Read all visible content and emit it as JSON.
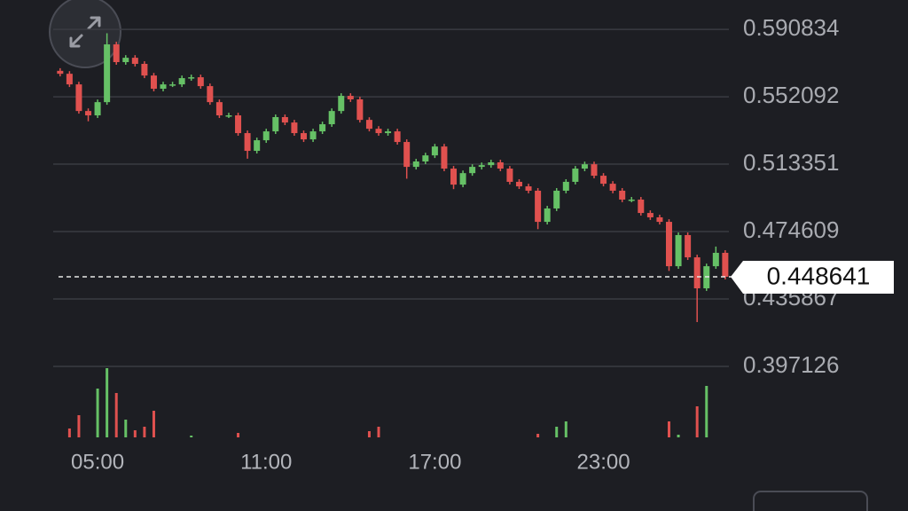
{
  "chart_data": {
    "type": "candlestick",
    "x": [
      3.667,
      4,
      4.333,
      4.667,
      5,
      5.333,
      5.667,
      6,
      6.333,
      6.667,
      7,
      7.333,
      7.667,
      8,
      8.333,
      8.667,
      9,
      9.333,
      9.667,
      10,
      10.333,
      10.667,
      11,
      11.333,
      11.667,
      12,
      12.333,
      12.667,
      13,
      13.333,
      13.667,
      14,
      14.333,
      14.667,
      15,
      15.333,
      15.667,
      16,
      16.333,
      16.667,
      17,
      17.333,
      17.667,
      18,
      18.333,
      18.667,
      19,
      19.333,
      19.667,
      20,
      20.333,
      20.667,
      21,
      21.333,
      21.667,
      22,
      22.333,
      22.667,
      23,
      23.333,
      23.667,
      24,
      24.333,
      24.667,
      25,
      25.333,
      25.667,
      26,
      26.333,
      26.667,
      27,
      27.333
    ],
    "open": [
      0.567,
      0.5653,
      0.5592,
      0.5439,
      0.5414,
      0.549,
      0.5822,
      0.572,
      0.5745,
      0.571,
      0.5643,
      0.5567,
      0.5592,
      0.5592,
      0.5628,
      0.5633,
      0.5582,
      0.549,
      0.5414,
      0.5414,
      0.5312,
      0.521,
      0.5271,
      0.5322,
      0.5404,
      0.5373,
      0.5312,
      0.5276,
      0.5322,
      0.5363,
      0.5439,
      0.5526,
      0.5506,
      0.5388,
      0.5337,
      0.5312,
      0.5322,
      0.5261,
      0.5118,
      0.5149,
      0.5184,
      0.5235,
      0.5108,
      0.5016,
      0.5082,
      0.5118,
      0.5128,
      0.5144,
      0.5108,
      0.5032,
      0.5006,
      0.4981,
      0.4802,
      0.4879,
      0.4981,
      0.5032,
      0.5108,
      0.5133,
      0.5067,
      0.5021,
      0.4981,
      0.493,
      0.493,
      0.4853,
      0.4828,
      0.4802,
      0.4547,
      0.4726,
      0.4598,
      0.442,
      0.4547,
      0.4624
    ],
    "high": [
      0.5685,
      0.5668,
      0.5607,
      0.5454,
      0.5505,
      0.5886,
      0.5837,
      0.576,
      0.576,
      0.5725,
      0.5658,
      0.5607,
      0.5607,
      0.5643,
      0.5648,
      0.5648,
      0.5597,
      0.5505,
      0.5429,
      0.5429,
      0.5327,
      0.5286,
      0.5337,
      0.5419,
      0.5419,
      0.5388,
      0.5327,
      0.5337,
      0.5378,
      0.5454,
      0.5541,
      0.5541,
      0.5521,
      0.5403,
      0.5352,
      0.5337,
      0.5337,
      0.5276,
      0.5164,
      0.5199,
      0.525,
      0.525,
      0.5123,
      0.5097,
      0.5133,
      0.5143,
      0.5159,
      0.5159,
      0.5123,
      0.5047,
      0.5021,
      0.4996,
      0.4894,
      0.4996,
      0.5047,
      0.5123,
      0.5148,
      0.5148,
      0.5082,
      0.5036,
      0.4996,
      0.4945,
      0.4945,
      0.4868,
      0.4843,
      0.4817,
      0.4741,
      0.4741,
      0.4613,
      0.4562,
      0.466,
      0.4639
    ],
    "low": [
      0.5638,
      0.5577,
      0.5424,
      0.538,
      0.5399,
      0.5475,
      0.5705,
      0.5705,
      0.5695,
      0.5628,
      0.5552,
      0.5552,
      0.5577,
      0.5577,
      0.5613,
      0.5567,
      0.5475,
      0.5399,
      0.5399,
      0.5297,
      0.5165,
      0.5195,
      0.5256,
      0.5307,
      0.5358,
      0.5297,
      0.5261,
      0.5261,
      0.5307,
      0.5348,
      0.5424,
      0.5491,
      0.5373,
      0.5322,
      0.5297,
      0.5297,
      0.5246,
      0.505,
      0.5103,
      0.5134,
      0.5169,
      0.5093,
      0.499,
      0.5001,
      0.5067,
      0.5103,
      0.5113,
      0.5093,
      0.5017,
      0.4991,
      0.4966,
      0.476,
      0.4787,
      0.4864,
      0.4966,
      0.5017,
      0.5093,
      0.5052,
      0.5006,
      0.4966,
      0.4915,
      0.4915,
      0.4838,
      0.4813,
      0.4787,
      0.452,
      0.4532,
      0.4583,
      0.4226,
      0.4405,
      0.4532,
      0.4471
    ],
    "close": [
      0.5653,
      0.5592,
      0.5439,
      0.5414,
      0.549,
      0.5822,
      0.572,
      0.5745,
      0.571,
      0.5643,
      0.5567,
      0.5592,
      0.5592,
      0.5628,
      0.5633,
      0.5582,
      0.549,
      0.5414,
      0.5414,
      0.5312,
      0.521,
      0.5271,
      0.5322,
      0.5404,
      0.5373,
      0.5312,
      0.5276,
      0.5322,
      0.5363,
      0.5439,
      0.5526,
      0.5506,
      0.5388,
      0.5337,
      0.5312,
      0.5322,
      0.5261,
      0.5118,
      0.5149,
      0.5184,
      0.5235,
      0.5108,
      0.5016,
      0.5082,
      0.5118,
      0.5128,
      0.5144,
      0.5108,
      0.5032,
      0.5006,
      0.4981,
      0.4802,
      0.4879,
      0.4981,
      0.5032,
      0.5108,
      0.5133,
      0.5067,
      0.5021,
      0.4981,
      0.493,
      0.493,
      0.4853,
      0.4828,
      0.4802,
      0.4547,
      0.4726,
      0.4598,
      0.442,
      0.4547,
      0.4624,
      0.448641
    ],
    "volume": [
      0,
      10,
      25,
      0,
      55,
      78,
      50,
      20,
      8,
      12,
      30,
      0,
      0,
      0,
      2,
      0,
      0,
      0,
      0,
      5,
      0,
      0,
      0,
      0,
      0,
      0,
      0,
      0,
      0,
      0,
      0,
      0,
      0,
      7,
      12,
      0,
      0,
      0,
      0,
      0,
      0,
      0,
      0,
      0,
      0,
      0,
      0,
      0,
      0,
      0,
      0,
      4,
      0,
      12,
      18,
      0,
      0,
      0,
      0,
      0,
      0,
      0,
      0,
      0,
      0,
      18,
      3,
      0,
      35,
      58,
      0,
      0
    ],
    "volume_lim": [
      0,
      80
    ],
    "up_color": "#66c166",
    "down_color": "#e0514f",
    "last_price": 0.448641,
    "xlim": [
      3.42,
      27.4
    ],
    "xticks": [
      {
        "value": 5,
        "label": "05:00"
      },
      {
        "value": 11,
        "label": "11:00"
      },
      {
        "value": 17,
        "label": "17:00"
      },
      {
        "value": 23,
        "label": "23:00"
      }
    ],
    "ylim": [
      0.397126,
      0.6077
    ],
    "yticks": [
      0.590834,
      0.552092,
      0.513351,
      0.474609,
      0.435867,
      0.397126
    ],
    "grid": true
  }
}
